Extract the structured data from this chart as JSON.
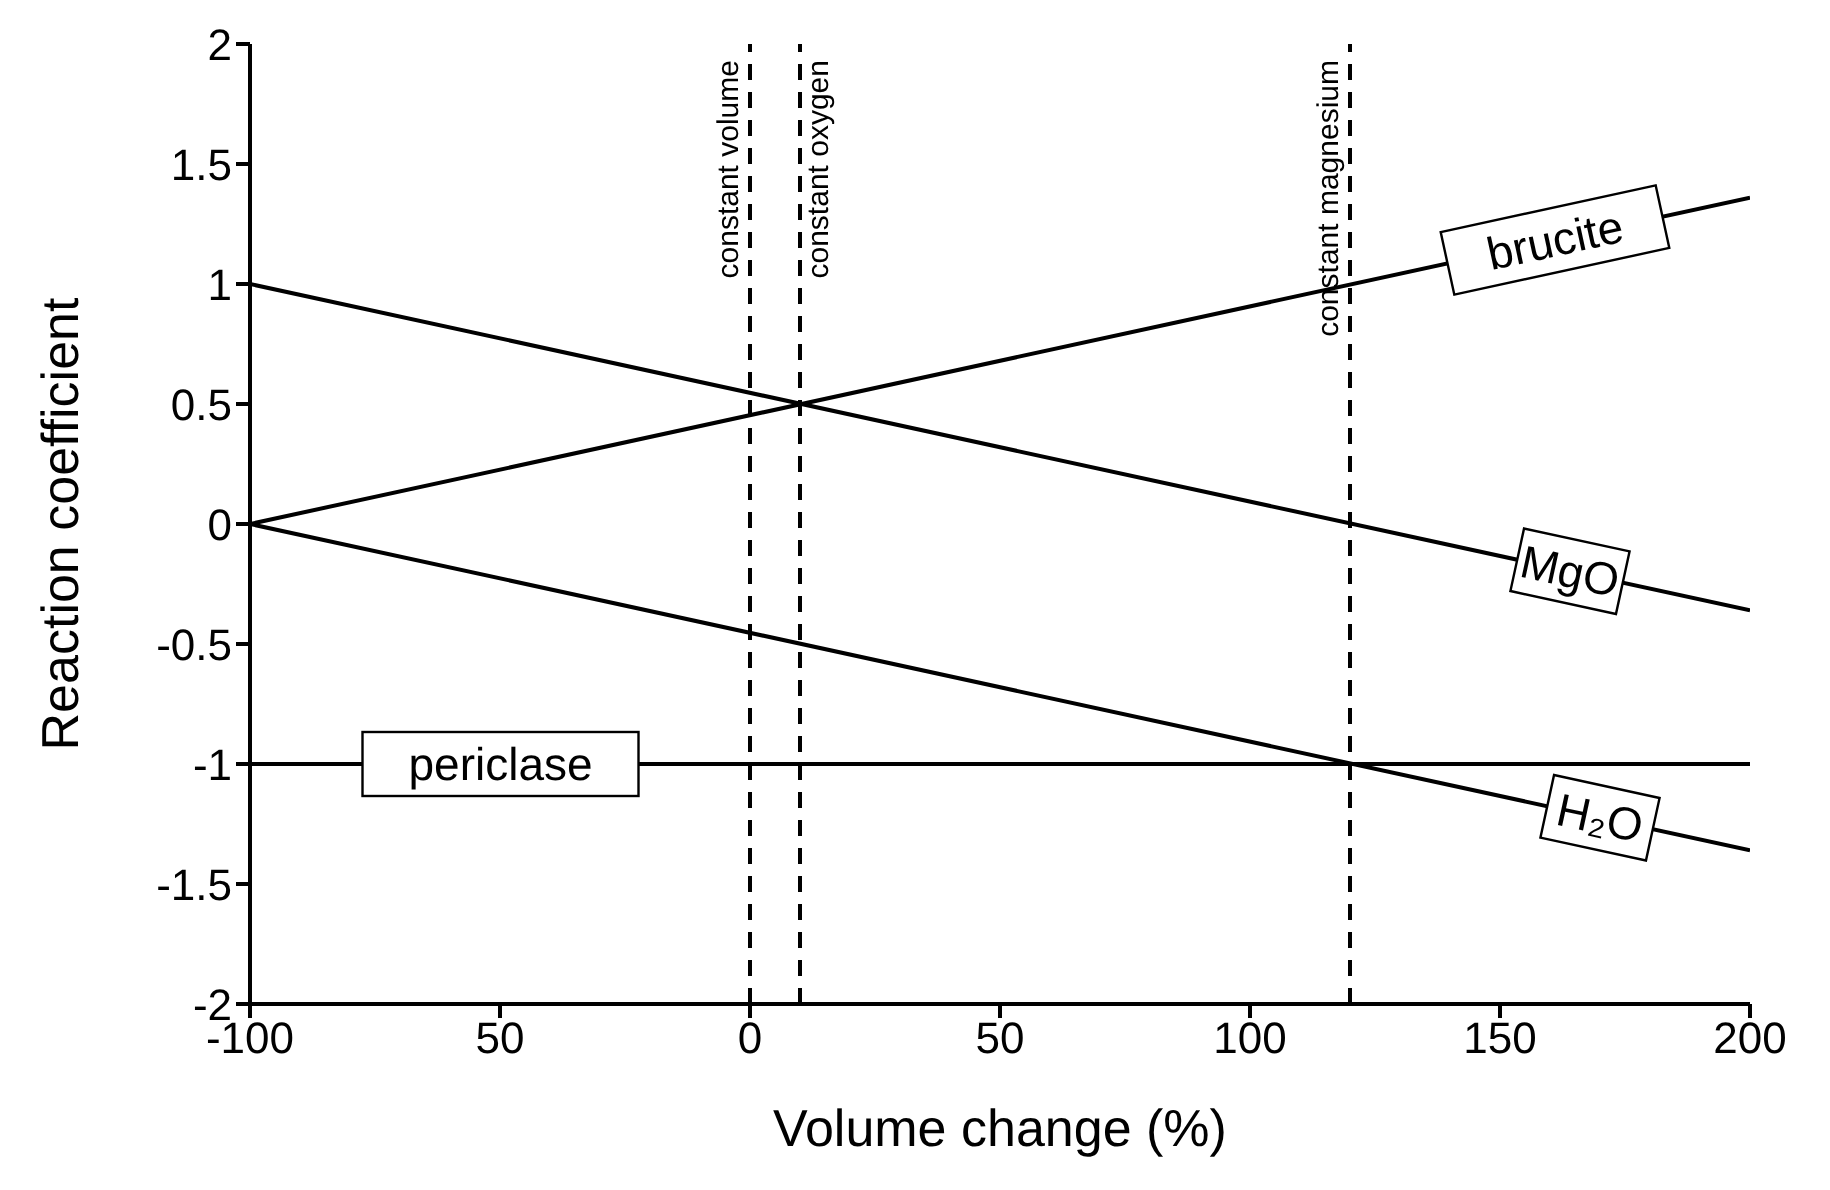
{
  "chart_data": {
    "type": "line",
    "xlabel": "Volume change (%)",
    "ylabel": "Reaction coefficient",
    "x": [
      -100,
      200
    ],
    "series": [
      {
        "name": "brucite",
        "color": "#000000",
        "values": [
          0,
          1.36
        ]
      },
      {
        "name": "MgO",
        "color": "#000000",
        "values": [
          1,
          -0.36
        ]
      },
      {
        "name": "H₂O",
        "color": "#000000",
        "values": [
          0,
          -1.36
        ]
      },
      {
        "name": "periclase",
        "color": "#000000",
        "values": [
          -1,
          -1
        ]
      }
    ],
    "xlim": [
      -100,
      200
    ],
    "xticks": [
      -100,
      {
        "value": -50,
        "label": "50"
      },
      0,
      50,
      100,
      150,
      200
    ],
    "ylim": [
      -2,
      2
    ],
    "yticks": [
      -2,
      -1.5,
      -1,
      -0.5,
      0,
      0.5,
      1,
      1.5,
      2
    ],
    "ref_lines": [
      {
        "axis": "x",
        "value": 0,
        "label": "constant volume",
        "line_style": "dashed"
      },
      {
        "axis": "x",
        "value": 10,
        "label": "constant oxygen",
        "line_style": "dashed"
      },
      {
        "axis": "x",
        "value": 120,
        "label": "constant magnesium",
        "line_style": "dashed"
      }
    ],
    "grid": false,
    "legend": false,
    "marker": "none",
    "line_style": "solid"
  }
}
